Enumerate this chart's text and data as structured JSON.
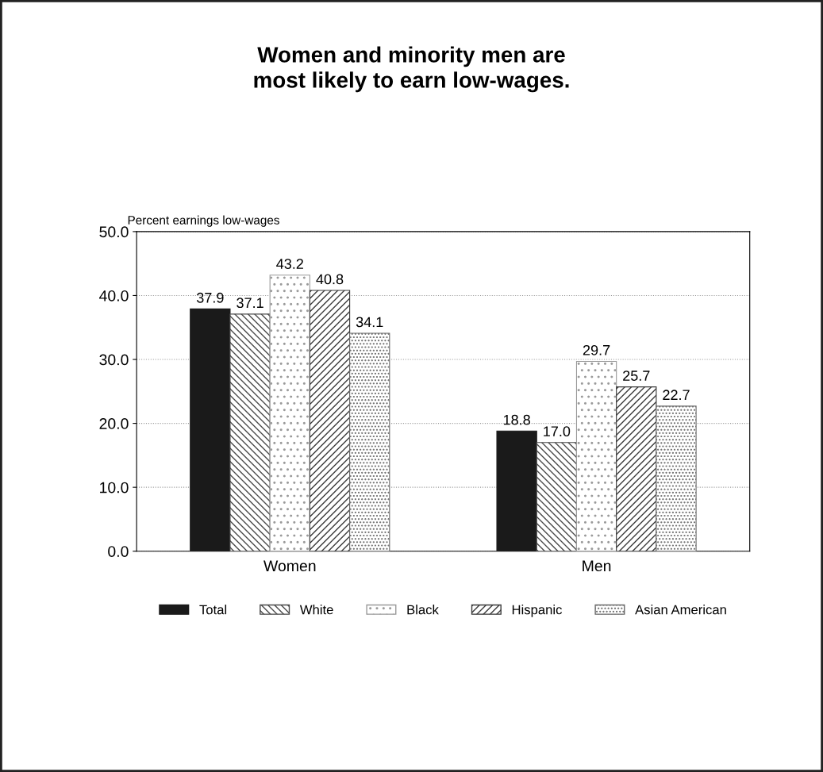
{
  "chart_data": {
    "type": "bar",
    "title": "Women and minority men are\nmost likely to earn low-wages.",
    "ylabel": "Percent earnings low-wages",
    "categories": [
      "Women",
      "Men"
    ],
    "series": [
      {
        "name": "Total",
        "color": "#1a1a1a",
        "values": [
          37.9,
          18.8
        ],
        "value_labels": [
          "37.9",
          "18.8"
        ]
      },
      {
        "name": "White",
        "color": "#4a4a4a",
        "values": [
          37.1,
          17.0
        ],
        "value_labels": [
          "37.1",
          "17.0"
        ]
      },
      {
        "name": "Black",
        "color": "#9a9a9a",
        "values": [
          43.2,
          29.7
        ],
        "value_labels": [
          "43.2",
          "29.7"
        ]
      },
      {
        "name": "Hispanic",
        "color": "#3a3a3a",
        "values": [
          40.8,
          25.7
        ],
        "value_labels": [
          "40.8",
          "25.7"
        ]
      },
      {
        "name": "Asian American",
        "color": "#6a6a6a",
        "values": [
          34.1,
          22.7
        ],
        "value_labels": [
          "34.1",
          "22.7"
        ]
      }
    ],
    "ylim": [
      0,
      50
    ],
    "yticks": [
      {
        "value": 0,
        "label": "0.0"
      },
      {
        "value": 10,
        "label": "10.0"
      },
      {
        "value": 20,
        "label": "20.0"
      },
      {
        "value": 30,
        "label": "30.0"
      },
      {
        "value": 40,
        "label": "40.0"
      },
      {
        "value": 50,
        "label": "50.0"
      }
    ],
    "grid": "y",
    "legend": "bottom"
  }
}
